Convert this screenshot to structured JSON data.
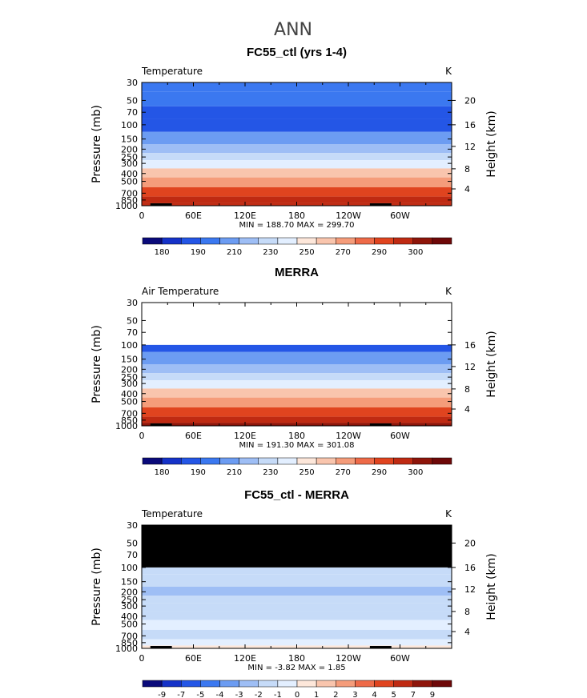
{
  "page_title": "ANN",
  "colors": {
    "temperature_scale": [
      "#0a0a7a",
      "#1532c8",
      "#2456e6",
      "#3b78f0",
      "#6c9cf2",
      "#9ebef5",
      "#c6dbf8",
      "#e3efff",
      "#fde7da",
      "#f9c5ad",
      "#f59c7a",
      "#ee6a48",
      "#e0441f",
      "#bf2a12",
      "#8e150a",
      "#6e0808"
    ],
    "difference_scale": [
      "#0a0a7a",
      "#1532c8",
      "#2456e6",
      "#3b78f0",
      "#6c9cf2",
      "#9ebef5",
      "#c6dbf8",
      "#e3efff",
      "#fde7da",
      "#f9c5ad",
      "#f59c7a",
      "#ee6a48",
      "#e0441f",
      "#bf2a12",
      "#8e150a",
      "#6e0808"
    ],
    "missing": "#000000"
  },
  "chart_data": [
    {
      "id": "model",
      "type": "heatmap",
      "title": "FC55_ctl (yrs 1-4)",
      "left_label": "Temperature",
      "units": "K",
      "ylabel": "Pressure (mb)",
      "ylabel_right": "Height (km)",
      "xlabel": "",
      "x_ticks": [
        "0",
        "60E",
        "120E",
        "180",
        "120W",
        "60W"
      ],
      "x_tick_positions_deg": [
        0,
        60,
        120,
        180,
        240,
        300
      ],
      "xlim": [
        0,
        360
      ],
      "y_ticks": [
        "30",
        "50",
        "70",
        "100",
        "150",
        "200",
        "250",
        "300",
        "400",
        "500",
        "700",
        "850",
        "1000"
      ],
      "y_tick_values": [
        30,
        50,
        70,
        100,
        150,
        200,
        250,
        300,
        400,
        500,
        700,
        850,
        1000
      ],
      "ylim_mb": [
        30,
        1000
      ],
      "height_ticks": [
        "20",
        "16",
        "12",
        "8",
        "4"
      ],
      "height_tick_values_km": [
        20,
        16,
        12,
        8,
        4
      ],
      "levels_mb": [
        30,
        50,
        70,
        100,
        150,
        200,
        250,
        300,
        400,
        500,
        700,
        850,
        1000
      ],
      "level_values_K": [
        205,
        200,
        198,
        195,
        208,
        217,
        225,
        236,
        255,
        263,
        275,
        283,
        288
      ],
      "stats": "MIN =  188.70   MAX =  299.70",
      "min": 188.7,
      "max": 299.7,
      "colorbar_labels": [
        "180",
        "190",
        "210",
        "230",
        "250",
        "270",
        "290",
        "300"
      ]
    },
    {
      "id": "obs",
      "type": "heatmap",
      "title": "MERRA",
      "left_label": "Air Temperature",
      "units": "K",
      "ylabel": "Pressure (mb)",
      "ylabel_right": "Height (km)",
      "xlabel": "",
      "x_ticks": [
        "0",
        "60E",
        "120E",
        "180",
        "120W",
        "60W"
      ],
      "x_tick_positions_deg": [
        0,
        60,
        120,
        180,
        240,
        300
      ],
      "xlim": [
        0,
        360
      ],
      "y_ticks": [
        "30",
        "50",
        "70",
        "100",
        "150",
        "200",
        "250",
        "300",
        "400",
        "500",
        "700",
        "850",
        "1000"
      ],
      "y_tick_values": [
        30,
        50,
        70,
        100,
        150,
        200,
        250,
        300,
        400,
        500,
        700,
        850,
        1000
      ],
      "ylim_mb": [
        30,
        1000
      ],
      "height_ticks": [
        "16",
        "12",
        "8",
        "4"
      ],
      "height_tick_values_km": [
        16,
        12,
        8,
        4
      ],
      "levels_mb": [
        100,
        150,
        200,
        250,
        300,
        400,
        500,
        700,
        850,
        1000
      ],
      "level_values_K": [
        196,
        208,
        217,
        225,
        236,
        255,
        263,
        275,
        283,
        289
      ],
      "stats": "MIN =  191.30   MAX =  301.08",
      "min": 191.3,
      "max": 301.08,
      "colorbar_labels": [
        "180",
        "190",
        "210",
        "230",
        "250",
        "270",
        "290",
        "300"
      ]
    },
    {
      "id": "diff",
      "type": "heatmap",
      "title": "FC55_ctl - MERRA",
      "left_label": "Temperature",
      "units": "K",
      "ylabel": "Pressure (mb)",
      "ylabel_right": "Height (km)",
      "xlabel": "",
      "x_ticks": [
        "0",
        "60E",
        "120E",
        "180",
        "120W",
        "60W"
      ],
      "x_tick_positions_deg": [
        0,
        60,
        120,
        180,
        240,
        300
      ],
      "xlim": [
        0,
        360
      ],
      "y_ticks": [
        "30",
        "50",
        "70",
        "100",
        "150",
        "200",
        "250",
        "300",
        "400",
        "500",
        "700",
        "850",
        "1000"
      ],
      "y_tick_values": [
        30,
        50,
        70,
        100,
        150,
        200,
        250,
        300,
        400,
        500,
        700,
        850,
        1000
      ],
      "ylim_mb": [
        30,
        1000
      ],
      "height_ticks": [
        "20",
        "16",
        "12",
        "8",
        "4"
      ],
      "height_tick_values_km": [
        20,
        16,
        12,
        8,
        4
      ],
      "levels_mb": [
        100,
        150,
        200,
        250,
        300,
        400,
        500,
        700,
        850,
        1000
      ],
      "level_values_K": [
        -2.5,
        -1.5,
        -3,
        -2.5,
        -1.5,
        -2,
        -1,
        -1.5,
        -0.5,
        0.5
      ],
      "stats": "MIN =   -3.82   MAX =    1.85",
      "min": -3.82,
      "max": 1.85,
      "colorbar_labels": [
        "-9",
        "-7",
        "-5",
        "-4",
        "-3",
        "-2",
        "-1",
        "0",
        "1",
        "2",
        "3",
        "4",
        "5",
        "7",
        "9"
      ]
    }
  ]
}
